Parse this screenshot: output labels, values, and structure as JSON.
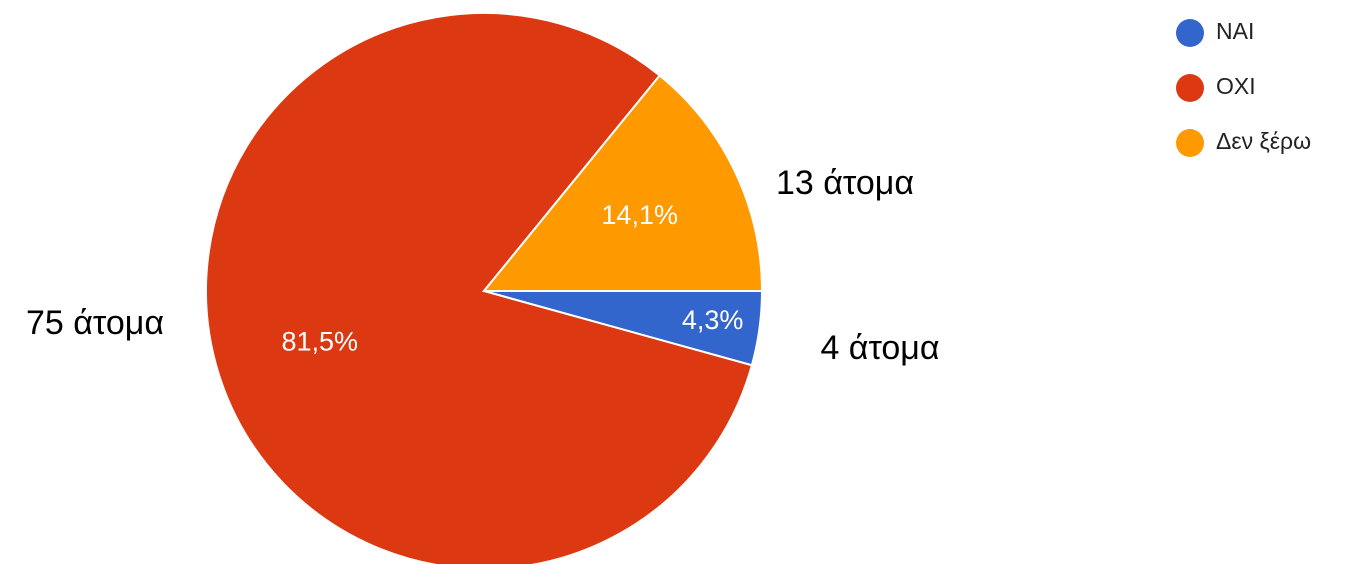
{
  "chart_data": {
    "type": "pie",
    "categories": [
      "ΝΑΙ",
      "ΟΧΙ",
      "Δεν ξέρω"
    ],
    "values": [
      4.3,
      81.5,
      14.1
    ],
    "value_labels": [
      "4,3%",
      "81,5%",
      "14,1%"
    ],
    "annotations": [
      "4 άτομα",
      "75 άτομα",
      "13 άτομα"
    ],
    "colors": [
      "#3366cc",
      "#dc3912",
      "#ff9900"
    ],
    "legend": "top-right"
  }
}
